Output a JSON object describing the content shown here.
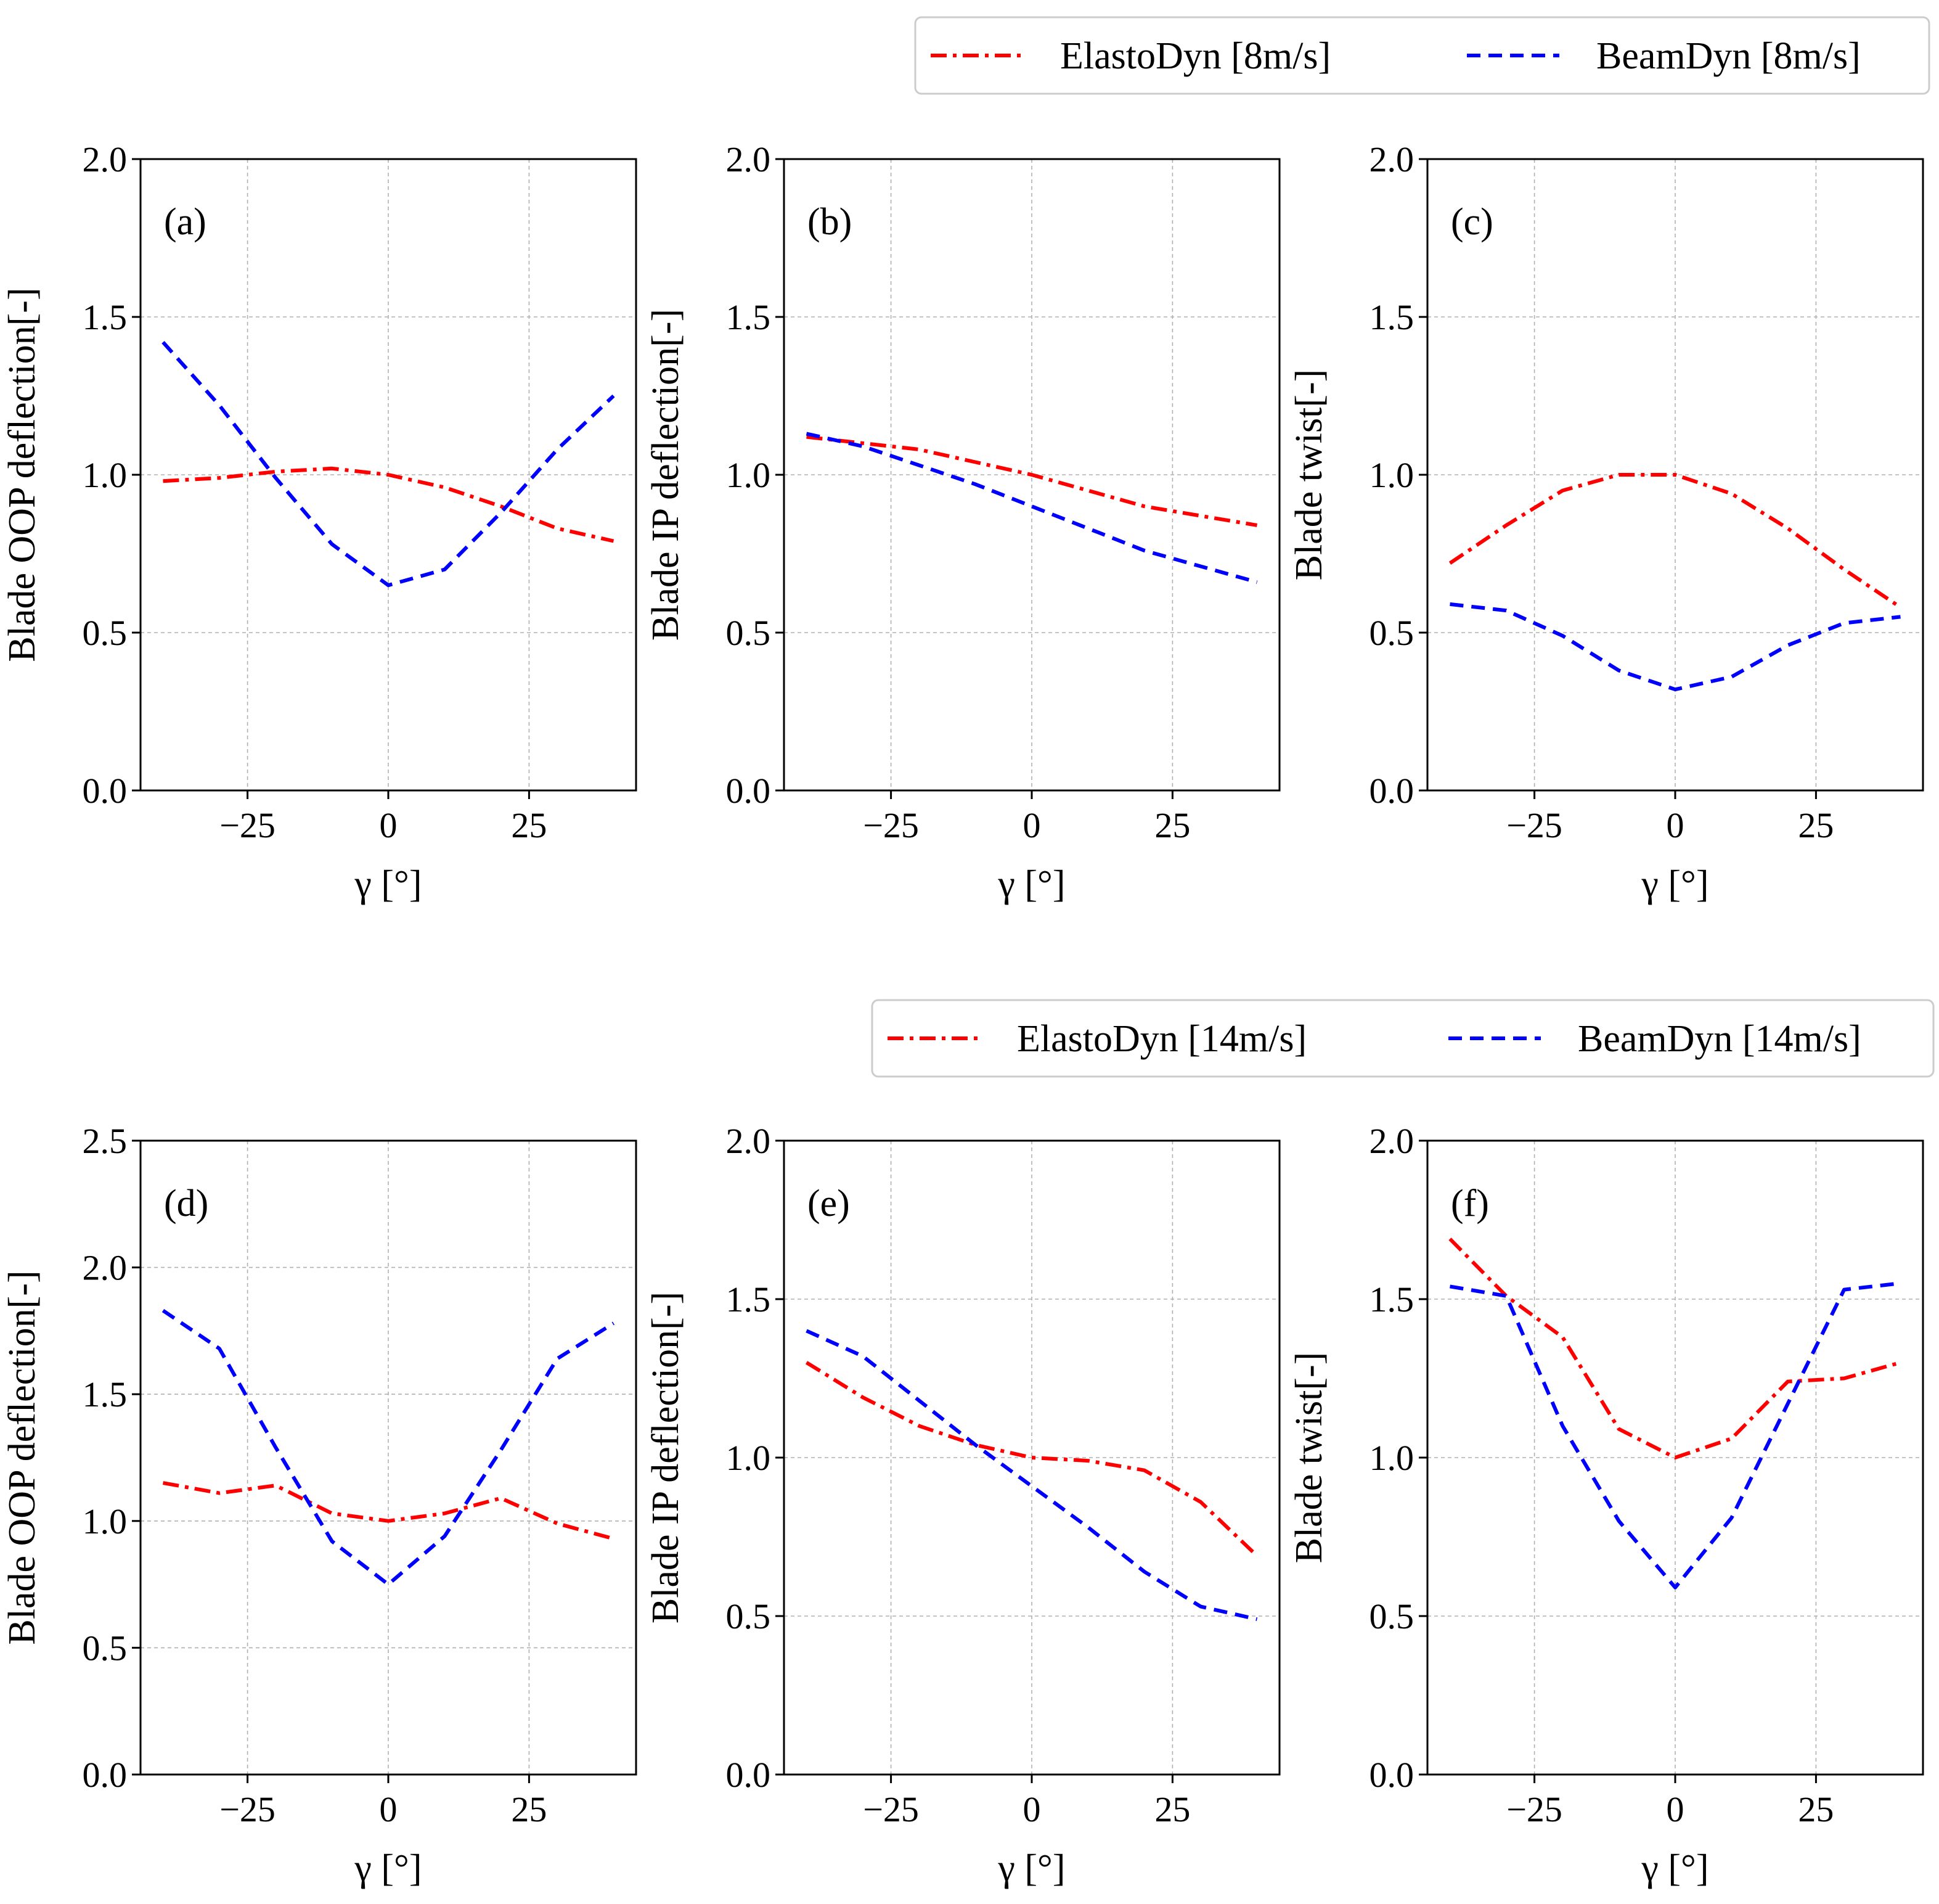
{
  "colors": {
    "elastodyn": "#ff0000",
    "beamdyn": "#0000ff"
  },
  "legends": [
    {
      "items": [
        {
          "series": "elastodyn",
          "label": "ElastoDyn [8m/s]"
        },
        {
          "series": "beamdyn",
          "label": "BeamDyn [8m/s]"
        }
      ]
    },
    {
      "items": [
        {
          "series": "elastodyn",
          "label": "ElastoDyn [14m/s]"
        },
        {
          "series": "beamdyn",
          "label": "BeamDyn [14m/s]"
        }
      ]
    }
  ],
  "chart_data": [
    {
      "type": "line",
      "panel": "(a)",
      "xlabel": "γ [°]",
      "ylabel": "Blade OOP deflection[-]",
      "xlim": [
        -44,
        44
      ],
      "ylim": [
        0,
        2.0
      ],
      "xticks": [
        -25,
        0,
        25
      ],
      "xtick_labels": [
        "−25",
        "0",
        "25"
      ],
      "yticks": [
        0,
        0.5,
        1.0,
        1.5,
        2.0
      ],
      "ytick_labels": [
        "0.0",
        "0.5",
        "1.0",
        "1.5",
        "2.0"
      ],
      "x": [
        -40,
        -30,
        -20,
        -10,
        0,
        10,
        20,
        30,
        40
      ],
      "series": [
        {
          "key": "elastodyn",
          "name": "ElastoDyn [8m/s]",
          "values": [
            0.98,
            0.99,
            1.01,
            1.02,
            1.0,
            0.96,
            0.9,
            0.83,
            0.79
          ]
        },
        {
          "key": "beamdyn",
          "name": "BeamDyn [8m/s]",
          "values": [
            1.42,
            1.22,
            0.99,
            0.78,
            0.65,
            0.7,
            0.88,
            1.08,
            1.25
          ]
        }
      ]
    },
    {
      "type": "line",
      "panel": "(b)",
      "xlabel": "γ [°]",
      "ylabel": "Blade IP deflection[-]",
      "xlim": [
        -44,
        44
      ],
      "ylim": [
        0,
        2.0
      ],
      "xticks": [
        -25,
        0,
        25
      ],
      "xtick_labels": [
        "−25",
        "0",
        "25"
      ],
      "yticks": [
        0,
        0.5,
        1.0,
        1.5,
        2.0
      ],
      "ytick_labels": [
        "0.0",
        "0.5",
        "1.0",
        "1.5",
        "2.0"
      ],
      "x": [
        -40,
        -30,
        -20,
        -10,
        0,
        10,
        20,
        30,
        40
      ],
      "series": [
        {
          "key": "elastodyn",
          "name": "ElastoDyn [8m/s]",
          "values": [
            1.12,
            1.1,
            1.08,
            1.04,
            1.0,
            0.95,
            0.9,
            0.87,
            0.84
          ]
        },
        {
          "key": "beamdyn",
          "name": "BeamDyn [8m/s]",
          "values": [
            1.13,
            1.09,
            1.03,
            0.97,
            0.9,
            0.83,
            0.76,
            0.71,
            0.66
          ]
        }
      ]
    },
    {
      "type": "line",
      "panel": "(c)",
      "xlabel": "γ [°]",
      "ylabel": "Blade twist[-]",
      "xlim": [
        -44,
        44
      ],
      "ylim": [
        0,
        2.0
      ],
      "xticks": [
        -25,
        0,
        25
      ],
      "xtick_labels": [
        "−25",
        "0",
        "25"
      ],
      "yticks": [
        0,
        0.5,
        1.0,
        1.5,
        2.0
      ],
      "ytick_labels": [
        "0.0",
        "0.5",
        "1.0",
        "1.5",
        "2.0"
      ],
      "x": [
        -40,
        -30,
        -20,
        -10,
        0,
        10,
        20,
        30,
        40
      ],
      "series": [
        {
          "key": "elastodyn",
          "name": "ElastoDyn [8m/s]",
          "values": [
            0.72,
            0.84,
            0.95,
            1.0,
            1.0,
            0.94,
            0.83,
            0.7,
            0.58
          ]
        },
        {
          "key": "beamdyn",
          "name": "BeamDyn [8m/s]",
          "values": [
            0.59,
            0.57,
            0.49,
            0.38,
            0.32,
            0.36,
            0.46,
            0.53,
            0.55
          ]
        }
      ]
    },
    {
      "type": "line",
      "panel": "(d)",
      "xlabel": "γ [°]",
      "ylabel": "Blade OOP deflection[-]",
      "xlim": [
        -44,
        44
      ],
      "ylim": [
        0,
        2.5
      ],
      "xticks": [
        -25,
        0,
        25
      ],
      "xtick_labels": [
        "−25",
        "0",
        "25"
      ],
      "yticks": [
        0,
        0.5,
        1.0,
        1.5,
        2.0,
        2.5
      ],
      "ytick_labels": [
        "0.0",
        "0.5",
        "1.0",
        "1.5",
        "2.0",
        "2.5"
      ],
      "x": [
        -40,
        -30,
        -20,
        -10,
        0,
        10,
        20,
        30,
        40
      ],
      "series": [
        {
          "key": "elastodyn",
          "name": "ElastoDyn [14m/s]",
          "values": [
            1.15,
            1.11,
            1.14,
            1.03,
            1.0,
            1.03,
            1.09,
            0.99,
            0.93
          ]
        },
        {
          "key": "beamdyn",
          "name": "BeamDyn [14m/s]",
          "values": [
            1.83,
            1.68,
            1.29,
            0.92,
            0.75,
            0.94,
            1.28,
            1.64,
            1.78
          ]
        }
      ]
    },
    {
      "type": "line",
      "panel": "(e)",
      "xlabel": "γ [°]",
      "ylabel": "Blade IP deflection[-]",
      "xlim": [
        -44,
        44
      ],
      "ylim": [
        0,
        2.0
      ],
      "xticks": [
        -25,
        0,
        25
      ],
      "xtick_labels": [
        "−25",
        "0",
        "25"
      ],
      "yticks": [
        0,
        0.5,
        1.0,
        1.5,
        2.0
      ],
      "ytick_labels": [
        "0.0",
        "0.5",
        "1.0",
        "1.5",
        "2.0"
      ],
      "x": [
        -40,
        -30,
        -20,
        -10,
        0,
        10,
        20,
        30,
        40
      ],
      "series": [
        {
          "key": "elastodyn",
          "name": "ElastoDyn [14m/s]",
          "values": [
            1.3,
            1.19,
            1.1,
            1.04,
            1.0,
            0.99,
            0.96,
            0.86,
            0.69
          ]
        },
        {
          "key": "beamdyn",
          "name": "BeamDyn [14m/s]",
          "values": [
            1.4,
            1.32,
            1.18,
            1.04,
            0.91,
            0.78,
            0.64,
            0.53,
            0.49
          ]
        }
      ]
    },
    {
      "type": "line",
      "panel": "(f)",
      "xlabel": "γ [°]",
      "ylabel": "Blade twist[-]",
      "xlim": [
        -44,
        44
      ],
      "ylim": [
        0,
        2.0
      ],
      "xticks": [
        -25,
        0,
        25
      ],
      "xtick_labels": [
        "−25",
        "0",
        "25"
      ],
      "yticks": [
        0,
        0.5,
        1.0,
        1.5,
        2.0
      ],
      "ytick_labels": [
        "0.0",
        "0.5",
        "1.0",
        "1.5",
        "2.0"
      ],
      "x": [
        -40,
        -30,
        -20,
        -10,
        0,
        10,
        20,
        30,
        40
      ],
      "series": [
        {
          "key": "elastodyn",
          "name": "ElastoDyn [14m/s]",
          "values": [
            1.69,
            1.51,
            1.38,
            1.09,
            1.0,
            1.06,
            1.24,
            1.25,
            1.3
          ]
        },
        {
          "key": "beamdyn",
          "name": "BeamDyn [14m/s]",
          "values": [
            1.54,
            1.51,
            1.1,
            0.8,
            0.59,
            0.81,
            1.17,
            1.53,
            1.55
          ]
        }
      ]
    }
  ]
}
